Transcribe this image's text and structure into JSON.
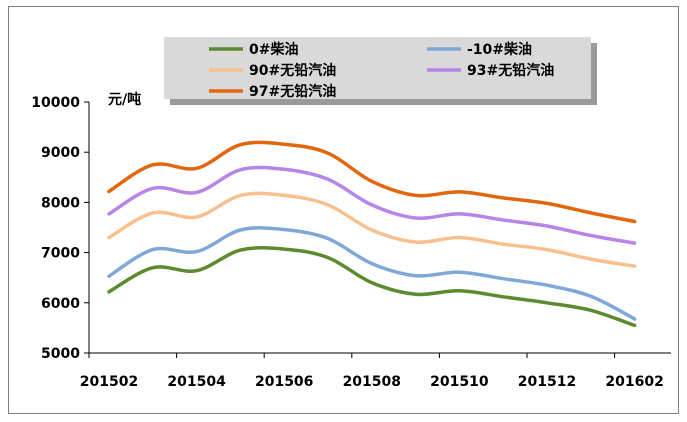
{
  "chart_data": {
    "type": "line",
    "ylabel": "元/吨",
    "ylim": [
      5000,
      10000
    ],
    "yticks": [
      5000,
      6000,
      7000,
      8000,
      9000,
      10000
    ],
    "x": [
      "201502",
      "201503",
      "201504",
      "201505",
      "201506",
      "201507",
      "201508",
      "201509",
      "201510",
      "201511",
      "201512",
      "201601",
      "201602"
    ],
    "xtick_labels": [
      "201502",
      "201504",
      "201506",
      "201508",
      "201510",
      "201512",
      "201602"
    ],
    "grid": false,
    "legend_position": "top",
    "series": [
      {
        "name": "0#柴油",
        "color": "#5b8a2f",
        "values": [
          6220,
          6700,
          6640,
          7050,
          7070,
          6900,
          6400,
          6170,
          6240,
          6120,
          6000,
          5850,
          5550
        ]
      },
      {
        "name": "-10#柴油",
        "color": "#7fa7d8",
        "values": [
          6530,
          7060,
          7020,
          7450,
          7460,
          7280,
          6780,
          6540,
          6610,
          6480,
          6350,
          6130,
          5680
        ]
      },
      {
        "name": "90#无铅汽油",
        "color": "#f8c08f",
        "values": [
          7300,
          7790,
          7710,
          8140,
          8140,
          7950,
          7450,
          7210,
          7300,
          7170,
          7060,
          6870,
          6730
        ]
      },
      {
        "name": "93#无铅汽油",
        "color": "#b784e8",
        "values": [
          7770,
          8280,
          8200,
          8650,
          8660,
          8460,
          7950,
          7690,
          7770,
          7650,
          7530,
          7340,
          7190
        ]
      },
      {
        "name": "97#无铅汽油",
        "color": "#e2660c",
        "values": [
          8220,
          8750,
          8680,
          9150,
          9160,
          8980,
          8420,
          8140,
          8210,
          8090,
          7980,
          7790,
          7620
        ]
      }
    ]
  }
}
